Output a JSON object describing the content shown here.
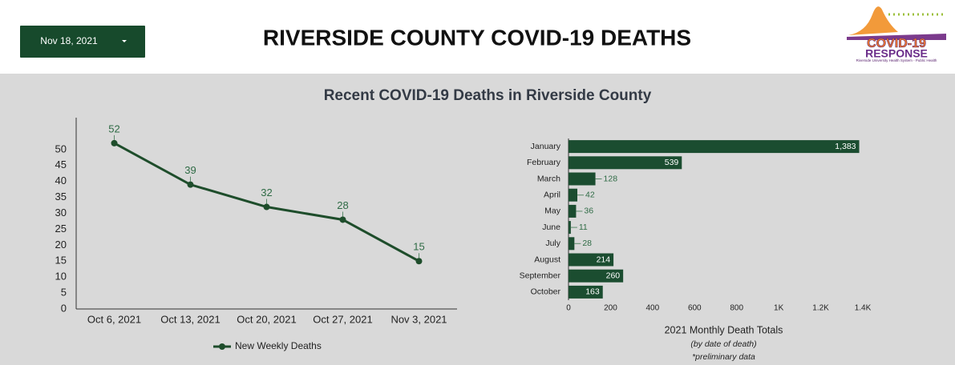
{
  "header": {
    "date_selector": "Nov 18, 2021",
    "title": "RIVERSIDE COUNTY COVID-19 DEATHS",
    "logo": {
      "line1": "COVID-19",
      "line2": "RESPONSE",
      "tagline": "Riverside University Health System - Public Health"
    }
  },
  "section_title": "Recent COVID-19 Deaths in Riverside County",
  "chart_data": [
    {
      "type": "line",
      "categories": [
        "Oct 6, 2021",
        "Oct 13, 2021",
        "Oct 20, 2021",
        "Oct 27, 2021",
        "Nov 3, 2021"
      ],
      "series": [
        {
          "name": "New Weekly Deaths",
          "color": "#1e4d2b",
          "values": [
            52,
            39,
            32,
            28,
            15
          ]
        }
      ],
      "ylim": [
        0,
        60
      ],
      "yticks": [
        0,
        5,
        10,
        15,
        20,
        25,
        30,
        35,
        40,
        45,
        50
      ],
      "grid": false,
      "legend": "bottom"
    },
    {
      "type": "bar",
      "orientation": "horizontal",
      "categories": [
        "January",
        "February",
        "March",
        "April",
        "May",
        "June",
        "July",
        "August",
        "September",
        "October"
      ],
      "values": [
        1383,
        539,
        128,
        42,
        36,
        11,
        28,
        214,
        260,
        163
      ],
      "value_labels": [
        "1,383",
        "539",
        "128",
        "42",
        "36",
        "11",
        "28",
        "214",
        "260",
        "163"
      ],
      "color": "#1b4d30",
      "xlim": [
        0,
        1400
      ],
      "xticks": [
        0,
        200,
        400,
        600,
        800,
        {
          "value": 1000,
          "label": "1K"
        },
        {
          "value": 1200,
          "label": "1.2K"
        },
        {
          "value": 1400,
          "label": "1.4K"
        }
      ],
      "xlabel": "2021 Monthly Death Totals",
      "notes": [
        "(by date of death)",
        "*preliminary data"
      ],
      "grid": false
    }
  ]
}
